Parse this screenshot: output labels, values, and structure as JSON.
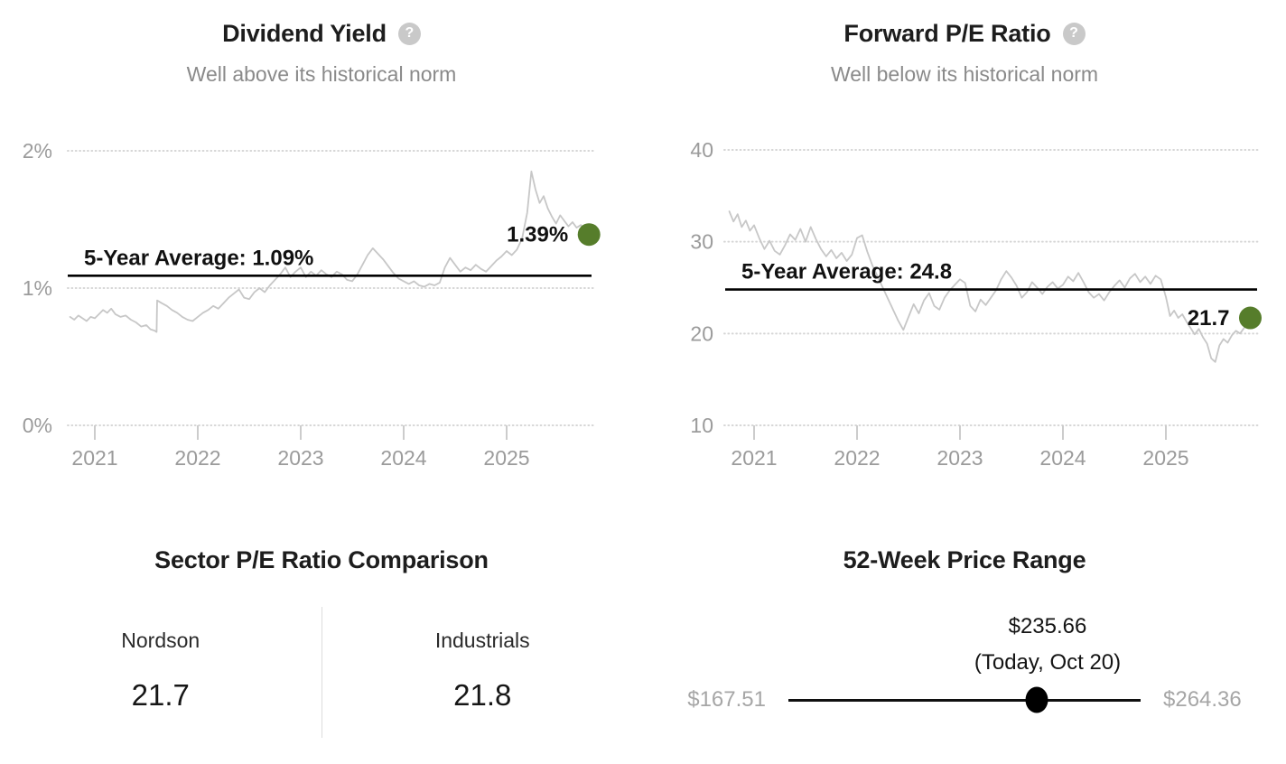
{
  "colors": {
    "accent_green": "#567d2b",
    "series_gray": "#c7c7c7",
    "grid_gray": "#d6d6d6",
    "tick_gray": "#cccccc",
    "axis_label_gray": "#9b9b9b",
    "average_line_black": "#000000",
    "title_dark": "#1d1d1d",
    "subtitle_gray": "#8a8a8a",
    "range_bound_gray": "#a6a6a6"
  },
  "icons": {
    "help_glyph": "?"
  },
  "chart_data": [
    {
      "type": "line",
      "title": "Dividend Yield",
      "subtitle": "Well above its historical norm",
      "legend_position": "none",
      "grid": "dotted-horizontal",
      "average": {
        "label": "5-Year Average: 1.09%",
        "value": 1.09
      },
      "current": {
        "label": "1.39%",
        "value": 1.39
      },
      "ylim": [
        0,
        2
      ],
      "y_ticks": [
        {
          "label": "2%",
          "value": 2
        },
        {
          "label": "1%",
          "value": 1
        },
        {
          "label": "0%",
          "value": 0
        }
      ],
      "x_ticks": [
        {
          "label": "2021",
          "value": 2021
        },
        {
          "label": "2022",
          "value": 2022
        },
        {
          "label": "2023",
          "value": 2023
        },
        {
          "label": "2024",
          "value": 2024
        },
        {
          "label": "2025",
          "value": 2025
        }
      ],
      "series": [
        {
          "name": "Dividend Yield (%)",
          "x": [
            2020.76,
            2020.8,
            2020.84,
            2020.88,
            2020.92,
            2020.96,
            2021.0,
            2021.04,
            2021.08,
            2021.12,
            2021.16,
            2021.2,
            2021.25,
            2021.3,
            2021.35,
            2021.4,
            2021.45,
            2021.5,
            2021.54,
            2021.58,
            2021.6,
            2021.605,
            2021.65,
            2021.7,
            2021.75,
            2021.8,
            2021.85,
            2021.9,
            2021.95,
            2022.0,
            2022.05,
            2022.1,
            2022.15,
            2022.2,
            2022.25,
            2022.3,
            2022.35,
            2022.4,
            2022.45,
            2022.5,
            2022.55,
            2022.6,
            2022.65,
            2022.7,
            2022.75,
            2022.8,
            2022.85,
            2022.9,
            2022.95,
            2023.0,
            2023.05,
            2023.1,
            2023.15,
            2023.2,
            2023.25,
            2023.3,
            2023.35,
            2023.4,
            2023.45,
            2023.5,
            2023.55,
            2023.6,
            2023.65,
            2023.7,
            2023.75,
            2023.8,
            2023.85,
            2023.9,
            2023.95,
            2024.0,
            2024.05,
            2024.1,
            2024.15,
            2024.2,
            2024.25,
            2024.3,
            2024.35,
            2024.4,
            2024.45,
            2024.5,
            2024.55,
            2024.6,
            2024.65,
            2024.7,
            2024.75,
            2024.8,
            2024.85,
            2024.9,
            2024.95,
            2025.0,
            2025.05,
            2025.1,
            2025.15,
            2025.2,
            2025.24,
            2025.28,
            2025.32,
            2025.36,
            2025.4,
            2025.44,
            2025.48,
            2025.52,
            2025.56,
            2025.6,
            2025.64,
            2025.68,
            2025.72,
            2025.76,
            2025.8
          ],
          "y": [
            0.79,
            0.77,
            0.8,
            0.78,
            0.76,
            0.79,
            0.78,
            0.81,
            0.84,
            0.82,
            0.85,
            0.81,
            0.79,
            0.8,
            0.77,
            0.75,
            0.72,
            0.73,
            0.7,
            0.69,
            0.68,
            0.91,
            0.89,
            0.87,
            0.84,
            0.82,
            0.79,
            0.77,
            0.76,
            0.79,
            0.82,
            0.84,
            0.87,
            0.85,
            0.89,
            0.93,
            0.96,
            0.99,
            0.93,
            0.92,
            0.97,
            1.0,
            0.97,
            1.02,
            1.06,
            1.1,
            1.15,
            1.08,
            1.12,
            1.15,
            1.08,
            1.12,
            1.09,
            1.13,
            1.1,
            1.08,
            1.12,
            1.1,
            1.06,
            1.05,
            1.1,
            1.17,
            1.24,
            1.29,
            1.25,
            1.21,
            1.16,
            1.11,
            1.07,
            1.05,
            1.03,
            1.05,
            1.02,
            1.01,
            1.03,
            1.02,
            1.04,
            1.15,
            1.22,
            1.17,
            1.12,
            1.15,
            1.13,
            1.17,
            1.14,
            1.12,
            1.16,
            1.2,
            1.23,
            1.27,
            1.24,
            1.28,
            1.36,
            1.55,
            1.85,
            1.72,
            1.62,
            1.67,
            1.58,
            1.52,
            1.47,
            1.53,
            1.49,
            1.45,
            1.48,
            1.44,
            1.46,
            1.42,
            1.39
          ]
        }
      ]
    },
    {
      "type": "line",
      "title": "Forward P/E Ratio",
      "subtitle": "Well below its historical norm",
      "legend_position": "none",
      "grid": "dotted-horizontal",
      "average": {
        "label": "5-Year Average: 24.8",
        "value": 24.8
      },
      "current": {
        "label": "21.7",
        "value": 21.7
      },
      "ylim": [
        10,
        40
      ],
      "y_ticks": [
        {
          "label": "40",
          "value": 40
        },
        {
          "label": "30",
          "value": 30
        },
        {
          "label": "20",
          "value": 20
        },
        {
          "label": "10",
          "value": 10
        }
      ],
      "x_ticks": [
        {
          "label": "2021",
          "value": 2021
        },
        {
          "label": "2022",
          "value": 2022
        },
        {
          "label": "2023",
          "value": 2023
        },
        {
          "label": "2024",
          "value": 2024
        },
        {
          "label": "2025",
          "value": 2025
        }
      ],
      "series": [
        {
          "name": "Forward P/E",
          "x": [
            2020.76,
            2020.8,
            2020.84,
            2020.88,
            2020.92,
            2020.96,
            2021.0,
            2021.05,
            2021.1,
            2021.15,
            2021.2,
            2021.25,
            2021.3,
            2021.35,
            2021.4,
            2021.45,
            2021.5,
            2021.55,
            2021.6,
            2021.65,
            2021.7,
            2021.75,
            2021.8,
            2021.85,
            2021.9,
            2021.95,
            2022.0,
            2022.05,
            2022.1,
            2022.15,
            2022.2,
            2022.25,
            2022.3,
            2022.35,
            2022.4,
            2022.45,
            2022.5,
            2022.55,
            2022.6,
            2022.65,
            2022.7,
            2022.75,
            2022.8,
            2022.85,
            2022.9,
            2022.95,
            2023.0,
            2023.05,
            2023.1,
            2023.15,
            2023.2,
            2023.25,
            2023.3,
            2023.35,
            2023.4,
            2023.45,
            2023.5,
            2023.55,
            2023.6,
            2023.65,
            2023.7,
            2023.75,
            2023.8,
            2023.85,
            2023.9,
            2023.95,
            2024.0,
            2024.05,
            2024.1,
            2024.15,
            2024.2,
            2024.25,
            2024.3,
            2024.35,
            2024.4,
            2024.45,
            2024.5,
            2024.55,
            2024.6,
            2024.65,
            2024.7,
            2024.75,
            2024.8,
            2024.85,
            2024.9,
            2024.95,
            2025.0,
            2025.04,
            2025.08,
            2025.12,
            2025.16,
            2025.2,
            2025.24,
            2025.28,
            2025.32,
            2025.36,
            2025.4,
            2025.44,
            2025.48,
            2025.52,
            2025.56,
            2025.6,
            2025.64,
            2025.68,
            2025.72,
            2025.76,
            2025.8,
            2025.82
          ],
          "y": [
            33.3,
            32.2,
            33.0,
            31.6,
            32.3,
            31.2,
            31.8,
            30.4,
            29.2,
            30.1,
            29.0,
            28.6,
            29.6,
            30.8,
            30.2,
            31.4,
            30.0,
            31.6,
            30.3,
            29.2,
            28.4,
            29.1,
            28.2,
            28.8,
            27.9,
            28.6,
            30.4,
            30.7,
            28.9,
            27.4,
            26.2,
            25.0,
            23.8,
            22.6,
            21.4,
            20.4,
            21.8,
            23.2,
            22.2,
            23.6,
            24.4,
            23.0,
            22.6,
            23.9,
            24.7,
            25.3,
            25.9,
            25.5,
            23.0,
            22.4,
            23.7,
            23.1,
            23.9,
            24.7,
            25.9,
            26.8,
            26.1,
            25.2,
            23.9,
            24.5,
            25.6,
            25.0,
            24.3,
            25.1,
            25.6,
            24.9,
            25.3,
            26.2,
            25.7,
            26.6,
            25.6,
            24.5,
            23.9,
            24.3,
            23.6,
            24.5,
            25.2,
            25.8,
            25.0,
            26.0,
            26.5,
            25.6,
            26.2,
            25.4,
            26.3,
            25.9,
            24.0,
            21.9,
            22.5,
            21.7,
            22.1,
            21.3,
            20.6,
            19.9,
            20.5,
            19.6,
            18.9,
            17.3,
            16.9,
            18.7,
            19.4,
            19.0,
            19.8,
            20.3,
            20.0,
            20.6,
            21.1,
            21.7
          ]
        }
      ]
    },
    {
      "type": "table",
      "title": "Sector P/E Ratio Comparison",
      "columns": [
        {
          "label": "Nordson",
          "value": "21.7"
        },
        {
          "label": "Industrials",
          "value": "21.8"
        }
      ]
    },
    {
      "type": "range",
      "title": "52-Week Price Range",
      "current_label": "$235.66",
      "current_note": "(Today, Oct 20)",
      "low_label": "$167.51",
      "high_label": "$264.36",
      "low": 167.51,
      "high": 264.36,
      "current": 235.66,
      "current_position_pct": 70.3
    }
  ]
}
